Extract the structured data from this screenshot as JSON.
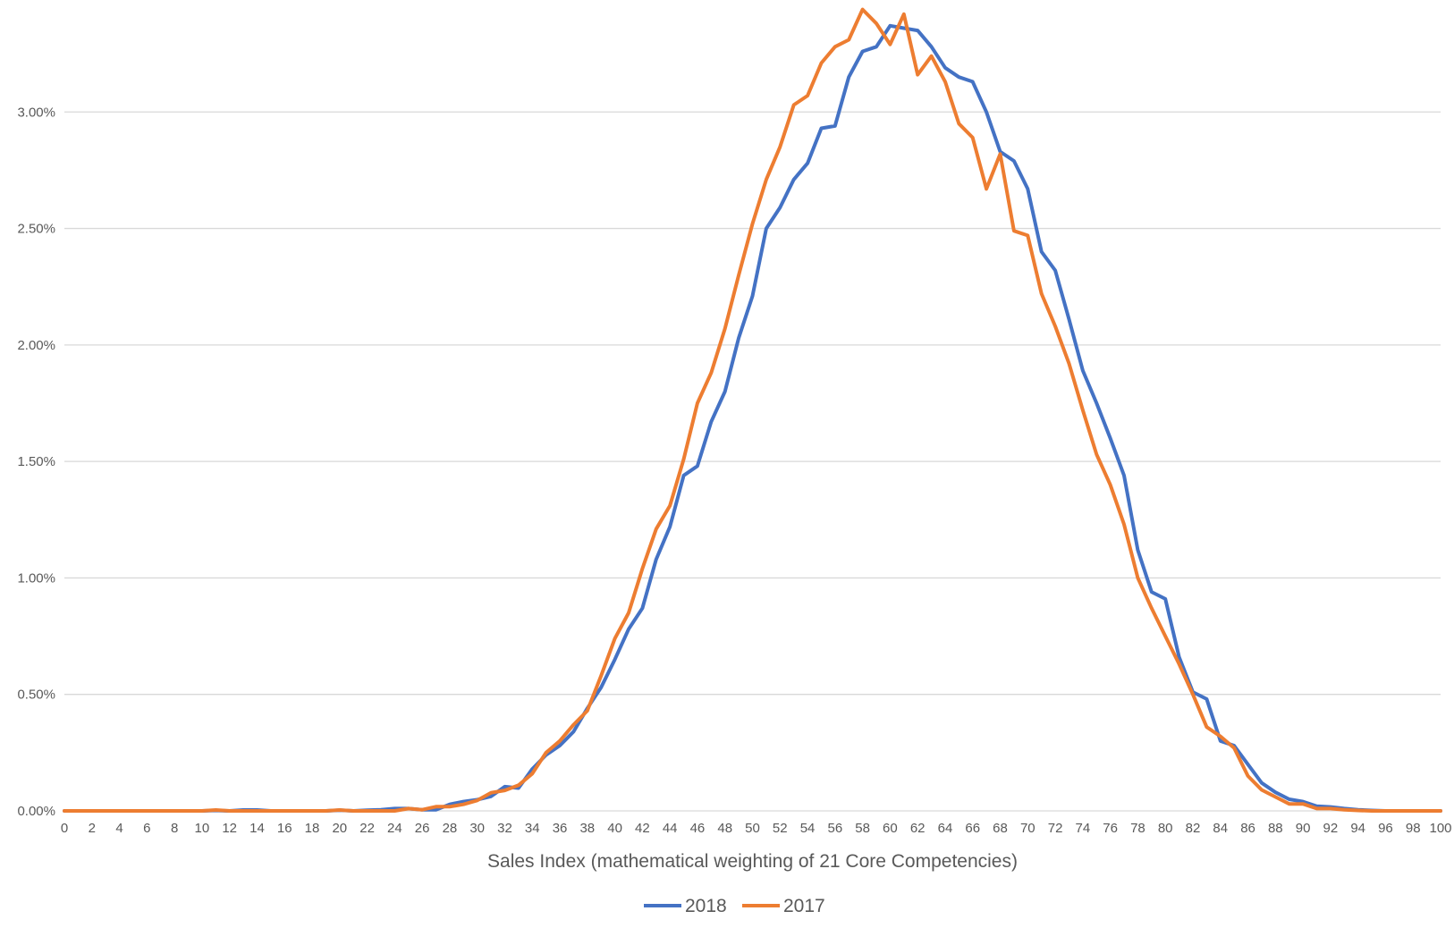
{
  "chart_data": {
    "type": "line",
    "title": "",
    "xlabel": "Sales Index (mathematical weighting of 21 Core Competencies)",
    "ylabel": "",
    "xlim": [
      0,
      100
    ],
    "ylim": [
      0,
      0.0345
    ],
    "y_ticks": [
      0,
      0.005,
      0.01,
      0.015,
      0.02,
      0.025,
      0.03
    ],
    "y_tick_labels": [
      "0.00%",
      "0.50%",
      "1.00%",
      "1.50%",
      "2.00%",
      "2.50%",
      "3.00%"
    ],
    "x_ticks": [
      0,
      2,
      4,
      6,
      8,
      10,
      12,
      14,
      16,
      18,
      20,
      22,
      24,
      26,
      28,
      30,
      32,
      34,
      36,
      38,
      40,
      42,
      44,
      46,
      48,
      50,
      52,
      54,
      56,
      58,
      60,
      62,
      64,
      66,
      68,
      70,
      72,
      74,
      76,
      78,
      80,
      82,
      84,
      86,
      88,
      90,
      92,
      94,
      96,
      98,
      100
    ],
    "x_tick_labels": [
      "0",
      "2",
      "4",
      "6",
      "8",
      "10",
      "12",
      "14",
      "16",
      "18",
      "20",
      "22",
      "24",
      "26",
      "28",
      "30",
      "32",
      "34",
      "36",
      "38",
      "40",
      "42",
      "44",
      "46",
      "48",
      "50",
      "52",
      "54",
      "56",
      "58",
      "60",
      "62",
      "64",
      "66",
      "68",
      "70",
      "72",
      "74",
      "76",
      "78",
      "80",
      "82",
      "84",
      "86",
      "88",
      "90",
      "92",
      "94",
      "96",
      "98",
      "100"
    ],
    "grid": "horizontal",
    "legend_position": "bottom",
    "colors": {
      "2018": "#4472C4",
      "2017": "#ED7D31",
      "grid": "#D9D9D9",
      "axis": "#D9D9D9",
      "text": "#595959"
    },
    "x": [
      0,
      1,
      2,
      3,
      4,
      5,
      6,
      7,
      8,
      9,
      10,
      11,
      12,
      13,
      14,
      15,
      16,
      17,
      18,
      19,
      20,
      21,
      22,
      23,
      24,
      25,
      26,
      27,
      28,
      29,
      30,
      31,
      32,
      33,
      34,
      35,
      36,
      37,
      38,
      39,
      40,
      41,
      42,
      43,
      44,
      45,
      46,
      47,
      48,
      49,
      50,
      51,
      52,
      53,
      54,
      55,
      56,
      57,
      58,
      59,
      60,
      61,
      62,
      63,
      64,
      65,
      66,
      67,
      68,
      69,
      70,
      71,
      72,
      73,
      74,
      75,
      76,
      77,
      78,
      79,
      80,
      81,
      82,
      83,
      84,
      85,
      86,
      87,
      88,
      89,
      90,
      91,
      92,
      93,
      94,
      95,
      96,
      97,
      98,
      99,
      100
    ],
    "series": [
      {
        "name": "2018",
        "values": [
          0,
          0,
          0,
          0,
          0,
          0,
          0,
          0,
          0,
          0,
          0,
          2e-05,
          0,
          4e-05,
          4e-05,
          0,
          0,
          0,
          0,
          0,
          3e-05,
          0,
          3e-05,
          5e-05,
          0.0001,
          0.0001,
          5e-05,
          5e-05,
          0.00028,
          0.0004,
          0.00048,
          0.00062,
          0.00104,
          0.00098,
          0.0018,
          0.0024,
          0.0028,
          0.0034,
          0.0044,
          0.0053,
          0.0065,
          0.0078,
          0.0087,
          0.0108,
          0.0122,
          0.0144,
          0.0148,
          0.0167,
          0.018,
          0.0203,
          0.0221,
          0.025,
          0.0259,
          0.0271,
          0.0278,
          0.0293,
          0.0294,
          0.0315,
          0.0326,
          0.0328,
          0.0337,
          0.0336,
          0.0335,
          0.0328,
          0.0319,
          0.0315,
          0.0313,
          0.03,
          0.0283,
          0.0279,
          0.0267,
          0.024,
          0.0232,
          0.0211,
          0.0189,
          0.0175,
          0.016,
          0.0144,
          0.0112,
          0.0094,
          0.0091,
          0.0066,
          0.0051,
          0.0048,
          0.003,
          0.0028,
          0.002,
          0.0012,
          0.0008,
          0.0005,
          0.0004,
          0.0002,
          0.00017,
          0.0001,
          5e-05,
          2e-05,
          0,
          0,
          0,
          0,
          0
        ]
      },
      {
        "name": "2017",
        "values": [
          0,
          0,
          0,
          0,
          0,
          0,
          0,
          0,
          0,
          0,
          0,
          4e-05,
          0,
          0,
          0,
          0,
          0,
          0,
          0,
          0,
          4e-05,
          0,
          0,
          0,
          0,
          0.0001,
          5e-05,
          0.00018,
          0.00018,
          0.00028,
          0.00045,
          0.00078,
          0.00088,
          0.0011,
          0.0016,
          0.0025,
          0.003,
          0.0037,
          0.0043,
          0.0058,
          0.0074,
          0.0085,
          0.0104,
          0.0121,
          0.0131,
          0.0151,
          0.0175,
          0.0188,
          0.0207,
          0.023,
          0.0252,
          0.0271,
          0.0285,
          0.0303,
          0.0307,
          0.0321,
          0.0328,
          0.0331,
          0.0344,
          0.0338,
          0.0329,
          0.0342,
          0.0316,
          0.0324,
          0.0313,
          0.0295,
          0.0289,
          0.0267,
          0.0282,
          0.0249,
          0.0247,
          0.0222,
          0.0208,
          0.0192,
          0.0172,
          0.0153,
          0.014,
          0.0123,
          0.01,
          0.0087,
          0.0075,
          0.0063,
          0.005,
          0.0036,
          0.0032,
          0.0027,
          0.0015,
          0.0009,
          0.0006,
          0.0003,
          0.0003,
          0.0001,
          0.0001,
          5e-05,
          2e-05,
          0,
          0,
          0,
          0,
          0,
          0
        ]
      }
    ]
  }
}
